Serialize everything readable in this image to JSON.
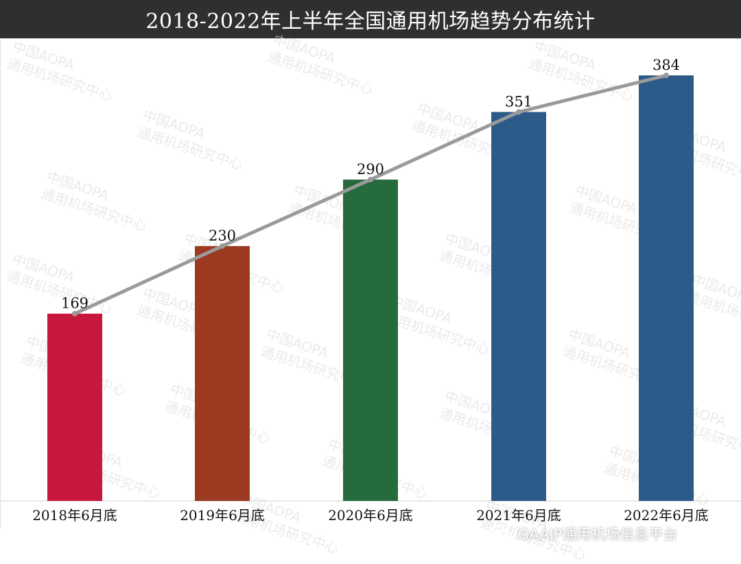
{
  "title": "2018-2022年上半年全国通用机场趋势分布统计",
  "watermark": {
    "line1": "中国AOPA",
    "line2": "通用机场研究中心"
  },
  "footer": {
    "icon": "wechat-icon",
    "text": "GAAIP通用机场信息平台"
  },
  "colors": {
    "title_bg": "#2f2f2f",
    "line": "#9a9a9a",
    "label": "#111111"
  },
  "chart_data": {
    "type": "bar",
    "title": "2018-2022年上半年全国通用机场趋势分布统计",
    "categories": [
      "2018年6月底",
      "2019年6月底",
      "2020年6月底",
      "2021年6月底",
      "2022年6月底"
    ],
    "series": [
      {
        "values": [
          169,
          230,
          290,
          351,
          384
        ],
        "colors": [
          "#c8173d",
          "#9b3a20",
          "#256b3e",
          "#2c5a89",
          "#2c5a89"
        ]
      }
    ],
    "overlay_line": {
      "values": [
        169,
        230,
        290,
        351,
        384
      ],
      "color": "#9a9a9a"
    },
    "data_labels": [
      "169",
      "230",
      "290",
      "351",
      "384"
    ],
    "ylim": [
      0,
      410
    ],
    "grid": false,
    "legend": "none"
  }
}
